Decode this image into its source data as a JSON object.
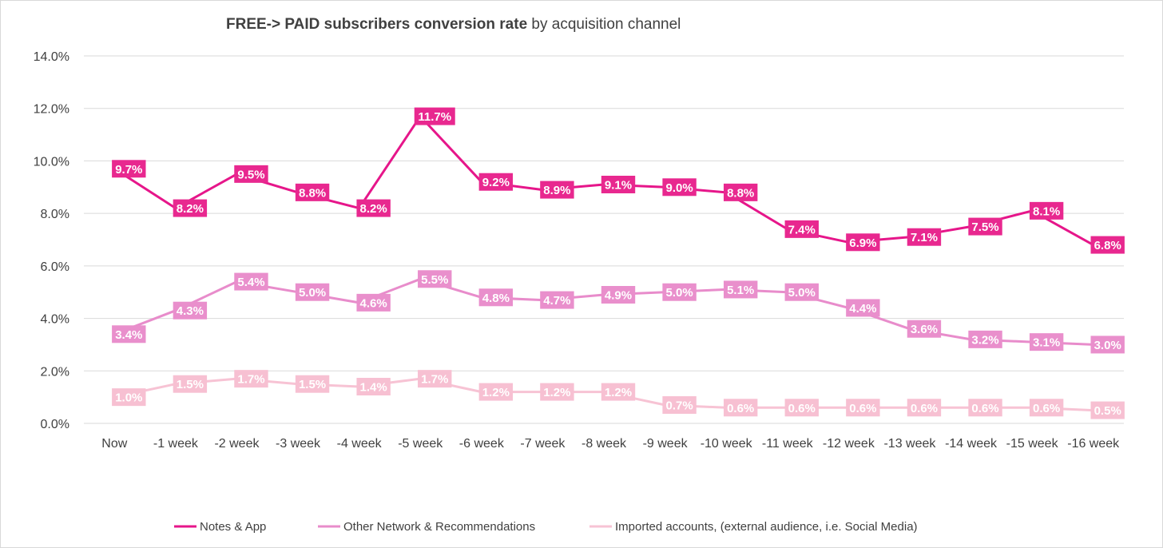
{
  "chart_data": {
    "type": "line",
    "title_bold": "FREE-> PAID subscribers conversion rate",
    "title_rest": " by acquisition channel",
    "xlabel": "",
    "ylabel": "",
    "ylim": [
      0,
      14
    ],
    "yticks": [
      0,
      2,
      4,
      6,
      8,
      10,
      12,
      14
    ],
    "ytick_labels": [
      "0.0%",
      "2.0%",
      "4.0%",
      "6.0%",
      "8.0%",
      "10.0%",
      "12.0%",
      "14.0%"
    ],
    "categories": [
      "Now",
      "-1 week",
      "-2 week",
      "-3 week",
      "-4 week",
      "-5 week",
      "-6 week",
      "-7 week",
      "-8 week",
      "-9 week",
      "-10 week",
      "-11 week",
      "-12 week",
      "-13 week",
      "-14 week",
      "-15 week",
      "-16 week"
    ],
    "grid": true,
    "legend_position": "bottom",
    "series": [
      {
        "name": "Notes & App",
        "color": "#e6168a",
        "label_bg": "#e8288f",
        "values": [
          9.7,
          8.2,
          9.5,
          8.8,
          8.2,
          11.7,
          9.2,
          8.9,
          9.1,
          9.0,
          8.8,
          7.4,
          6.9,
          7.1,
          7.5,
          8.1,
          6.8
        ],
        "labels": [
          "9.7%",
          "8.2%",
          "9.5%",
          "8.8%",
          "8.2%",
          "11.7%",
          "9.2%",
          "8.9%",
          "9.1%",
          "9.0%",
          "8.8%",
          "7.4%",
          "6.9%",
          "7.1%",
          "7.5%",
          "8.1%",
          "6.8%"
        ]
      },
      {
        "name": "Other Network & Recommendations",
        "color": "#e88ccb",
        "label_bg": "#e98fcc",
        "values": [
          3.4,
          4.3,
          5.4,
          5.0,
          4.6,
          5.5,
          4.8,
          4.7,
          4.9,
          5.0,
          5.1,
          5.0,
          4.4,
          3.6,
          3.2,
          3.1,
          3.0
        ],
        "labels": [
          "3.4%",
          "4.3%",
          "5.4%",
          "5.0%",
          "4.6%",
          "5.5%",
          "4.8%",
          "4.7%",
          "4.9%",
          "5.0%",
          "5.1%",
          "5.0%",
          "4.4%",
          "3.6%",
          "3.2%",
          "3.1%",
          "3.0%"
        ]
      },
      {
        "name": "Imported accounts, (external audience, i.e. Social Media)",
        "color": "#f7c3d4",
        "label_bg": "#f7c0d2",
        "values": [
          1.0,
          1.5,
          1.7,
          1.5,
          1.4,
          1.7,
          1.2,
          1.2,
          1.2,
          0.7,
          0.6,
          0.6,
          0.6,
          0.6,
          0.6,
          0.6,
          0.5
        ],
        "labels": [
          "1.0%",
          "1.5%",
          "1.7%",
          "1.5%",
          "1.4%",
          "1.7%",
          "1.2%",
          "1.2%",
          "1.2%",
          "0.7%",
          "0.6%",
          "0.6%",
          "0.6%",
          "0.6%",
          "0.6%",
          "0.6%",
          "0.5%"
        ]
      }
    ]
  }
}
